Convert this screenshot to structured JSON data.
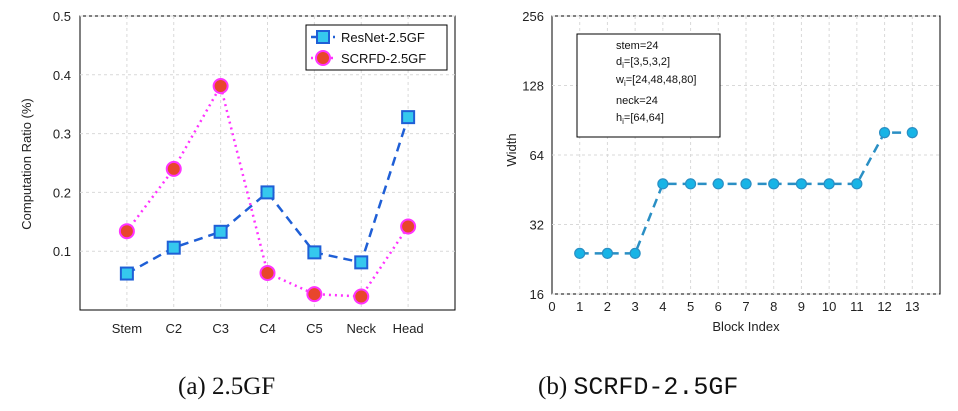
{
  "colors": {
    "resnet": "#1f5fd6",
    "resnet_marker_fill": "#35c8ee",
    "scrfd": "#ff33ff",
    "scrfd_marker_fill": "#e8462c",
    "width_line": "#2a8fc4",
    "width_marker_fill": "#17b4e6",
    "grid": "#d9d9d9",
    "axis": "#000000"
  },
  "captions": {
    "left": "(a) 2.5GF",
    "right_prefix": "(b) ",
    "right_name": "SCRFD-2.5GF"
  },
  "chart_data": [
    {
      "type": "line",
      "title": "",
      "xlabel": "",
      "ylabel": "Computation Ratio (%)",
      "categories": [
        "Stem",
        "C2",
        "C3",
        "C4",
        "C5",
        "Neck",
        "Head"
      ],
      "ylim": [
        0,
        0.5
      ],
      "yticks": [
        0.1,
        0.2,
        0.3,
        0.4,
        0.5
      ],
      "ytick_labels": [
        "0.1",
        "0.2",
        "0.3",
        "0.4",
        "0.5"
      ],
      "grid": true,
      "legend_position": "top-right",
      "series": [
        {
          "name": "ResNet-2.5GF",
          "marker": "square",
          "linestyle": "dashed",
          "values": [
            0.062,
            0.106,
            0.133,
            0.2,
            0.098,
            0.081,
            0.328
          ]
        },
        {
          "name": "SCRFD-2.5GF",
          "marker": "circle",
          "linestyle": "dotted",
          "values": [
            0.134,
            0.24,
            0.381,
            0.063,
            0.027,
            0.023,
            0.142
          ]
        }
      ]
    },
    {
      "type": "line",
      "title": "",
      "xlabel": "Block Index",
      "ylabel": "Width",
      "yscale": "log2",
      "x": [
        1,
        2,
        3,
        4,
        5,
        6,
        7,
        8,
        9,
        10,
        11,
        12,
        13
      ],
      "xlim": [
        0,
        14
      ],
      "xticks": [
        0,
        1,
        2,
        3,
        4,
        5,
        6,
        7,
        8,
        9,
        10,
        11,
        12,
        13
      ],
      "ylim": [
        16,
        256
      ],
      "yticks": [
        16,
        32,
        64,
        128,
        256
      ],
      "ytick_labels": [
        "16",
        "32",
        "64",
        "128",
        "256"
      ],
      "grid": true,
      "series": [
        {
          "name": "Width",
          "marker": "circle",
          "linestyle": "dashed",
          "values": [
            24,
            24,
            24,
            48,
            48,
            48,
            48,
            48,
            48,
            48,
            48,
            80,
            80
          ]
        }
      ],
      "annotation": {
        "stem": "stem=24",
        "d_prefix": "d",
        "d_sub": "i",
        "d_value": "=[3,5,3,2]",
        "w_prefix": "w",
        "w_sub": "i",
        "w_value": "=[24,48,48,80]",
        "neck": "neck=24",
        "h_prefix": "h",
        "h_sub": "i",
        "h_value": "=[64,64]"
      }
    }
  ]
}
